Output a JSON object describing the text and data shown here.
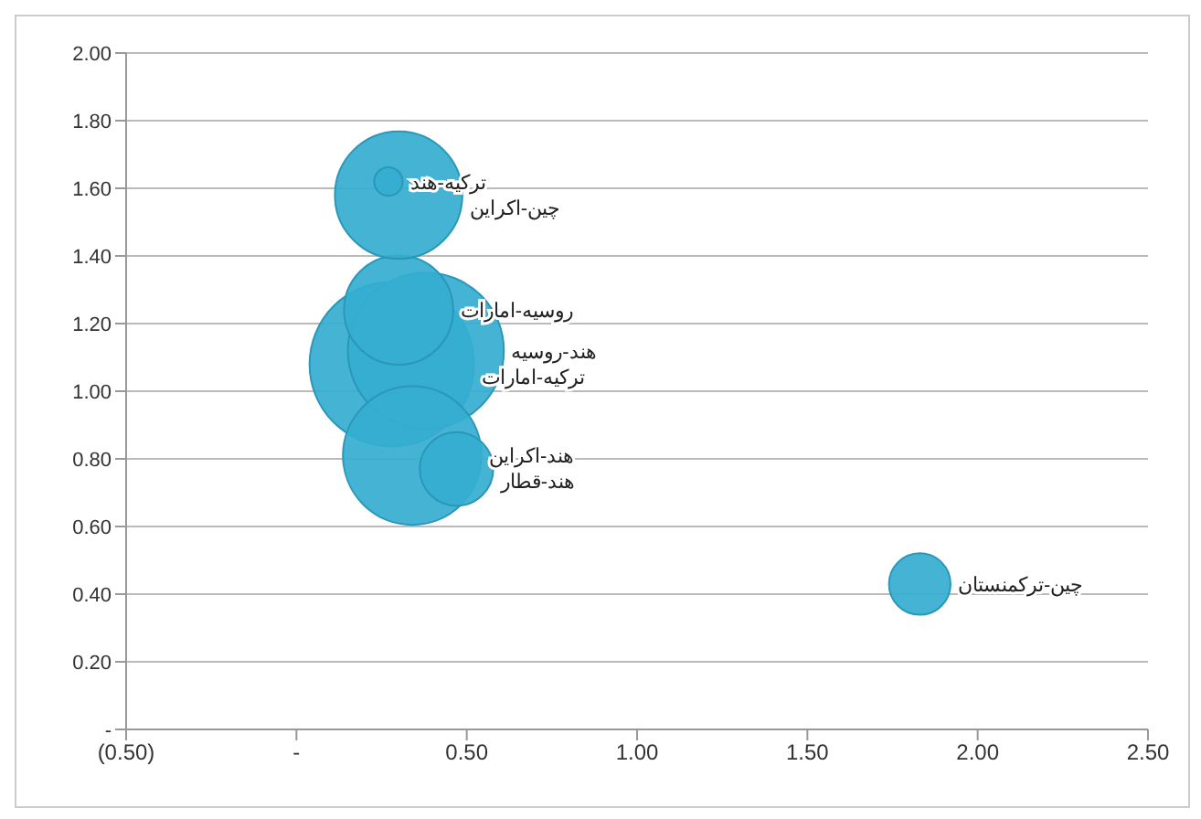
{
  "chart_data": {
    "type": "bubble",
    "xlim": [
      -0.5,
      2.5
    ],
    "xticks": [
      {
        "value": -0.5,
        "label": "(0.50)"
      },
      {
        "value": 0,
        "label": "-"
      },
      {
        "value": 0.5,
        "label": "0.50"
      },
      {
        "value": 1,
        "label": "1.00"
      },
      {
        "value": 1.5,
        "label": "1.50"
      },
      {
        "value": 2,
        "label": "2.00"
      },
      {
        "value": 2.5,
        "label": "2.50"
      }
    ],
    "ylim": [
      0,
      2
    ],
    "yticks": [
      {
        "value": 0,
        "label": "-"
      },
      {
        "value": 0.2,
        "label": "0.20"
      },
      {
        "value": 0.4,
        "label": "0.40"
      },
      {
        "value": 0.6,
        "label": "0.60"
      },
      {
        "value": 0.8,
        "label": "0.80"
      },
      {
        "value": 1,
        "label": "1.00"
      },
      {
        "value": 1.2,
        "label": "1.20"
      },
      {
        "value": 1.4,
        "label": "1.40"
      },
      {
        "value": 1.6,
        "label": "1.60"
      },
      {
        "value": 1.8,
        "label": "1.80"
      },
      {
        "value": 2,
        "label": "2.00"
      }
    ],
    "grid": "y",
    "legend": false,
    "series": [
      {
        "name": "ترکیه-امارات",
        "color": "#35aed0",
        "x": [
          0.28
        ],
        "values": [
          1.08
        ],
        "sizes": [
          1
        ]
      },
      {
        "name": "هند-روسیه",
        "color": "#35aed0",
        "x": [
          0.38
        ],
        "values": [
          1.12
        ],
        "sizes": [
          0.9
        ]
      },
      {
        "name": "روسیه-امارات",
        "color": "#35aed0",
        "x": [
          0.3
        ],
        "values": [
          1.24
        ],
        "sizes": [
          0.44
        ]
      },
      {
        "name": "چین-اکراین",
        "color": "#35aed0",
        "x": [
          0.3
        ],
        "values": [
          1.58
        ],
        "sizes": [
          0.6
        ]
      },
      {
        "name": "ترکیه-هند",
        "color": "#35aed0",
        "x": [
          0.27
        ],
        "values": [
          1.62
        ],
        "sizes": [
          0.03
        ]
      },
      {
        "name": "هند-اکراین",
        "color": "#35aed0",
        "x": [
          0.34
        ],
        "values": [
          0.81
        ],
        "sizes": [
          0.71
        ]
      },
      {
        "name": "هند-قطار",
        "color": "#35aed0",
        "x": [
          0.47
        ],
        "values": [
          0.77
        ],
        "sizes": [
          0.2
        ]
      },
      {
        "name": "چین-ترکمنستان",
        "color": "#35aed0",
        "x": [
          1.83
        ],
        "values": [
          0.43
        ],
        "sizes": [
          0.14
        ]
      }
    ]
  }
}
